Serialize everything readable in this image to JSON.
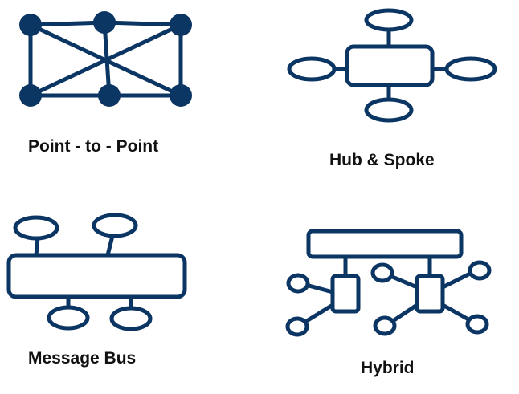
{
  "colors": {
    "stroke": "#0b3563",
    "text": "#111111",
    "background": "#ffffff"
  },
  "panels": {
    "point_to_point": {
      "label": "Point - to - Point"
    },
    "hub_and_spoke": {
      "label": "Hub & Spoke"
    },
    "message_bus": {
      "label": "Message Bus"
    },
    "hybrid": {
      "label": "Hybrid"
    }
  }
}
